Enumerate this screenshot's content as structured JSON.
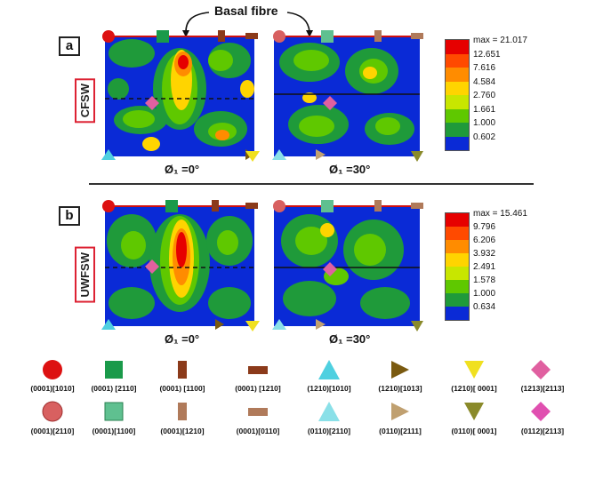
{
  "annotation": "Basal fibre",
  "panels": [
    {
      "letter": "a",
      "process": "CFSW",
      "phi_labels": [
        "Ø₁ =0°",
        "Ø₁ =30°"
      ],
      "colorbar": [
        "max = 21.017",
        "12.651",
        "7.616",
        "4.584",
        "2.760",
        "1.661",
        "1.000",
        "0.602"
      ]
    },
    {
      "letter": "b",
      "process": "UWFSW",
      "phi_labels": [
        "Ø₁ =0°",
        "Ø₁ =30°"
      ],
      "colorbar": [
        "max = 15.461",
        "9.796",
        "6.206",
        "3.932",
        "2.491",
        "1.578",
        "1.000",
        "0.634"
      ]
    }
  ],
  "colorbar_colors": [
    "#e60000",
    "#ff4a00",
    "#ff8c00",
    "#ffd400",
    "#c8e600",
    "#5fc800",
    "#1f9a3a",
    "#0a2ad6"
  ],
  "legend_row1": [
    {
      "label": "(0001)[1010]",
      "shape": "circle",
      "color": "#dd1111"
    },
    {
      "label": "(0001) [2110]",
      "shape": "square",
      "color": "#1a9a4a"
    },
    {
      "label": "(0001) [1100]",
      "shape": "bar-v",
      "color": "#8b3a1a"
    },
    {
      "label": "(0001) [1210]",
      "shape": "bar-h",
      "color": "#8b3a1a"
    },
    {
      "label": "(1210)[1010]",
      "shape": "tri-up",
      "color": "#4fd0e0"
    },
    {
      "label": "(1210)[1013]",
      "shape": "tri-right",
      "color": "#7a5a10"
    },
    {
      "label": "(1210)[ 0001]",
      "shape": "tri-down",
      "color": "#f0e020"
    },
    {
      "label": "(1213)[2113]",
      "shape": "diamond",
      "color": "#e060a0"
    }
  ],
  "legend_row2": [
    {
      "label": "(0001)[2110]",
      "shape": "circle",
      "color": "#d86060"
    },
    {
      "label": "(0001)[1100]",
      "shape": "square",
      "color": "#5fc090"
    },
    {
      "label": "(0001)[1210]",
      "shape": "bar-v",
      "color": "#b07a5a"
    },
    {
      "label": "(0001)[0110]",
      "shape": "bar-h",
      "color": "#b07a5a"
    },
    {
      "label": "(0110)[2110]",
      "shape": "tri-up",
      "color": "#8ae0e8"
    },
    {
      "label": "(0110)[2111]",
      "shape": "tri-right",
      "color": "#c0a070"
    },
    {
      "label": "(0110)[ 0001]",
      "shape": "tri-down",
      "color": "#8a8a2a"
    },
    {
      "label": "(0112)[2113]",
      "shape": "diamond",
      "color": "#e050b0"
    }
  ]
}
